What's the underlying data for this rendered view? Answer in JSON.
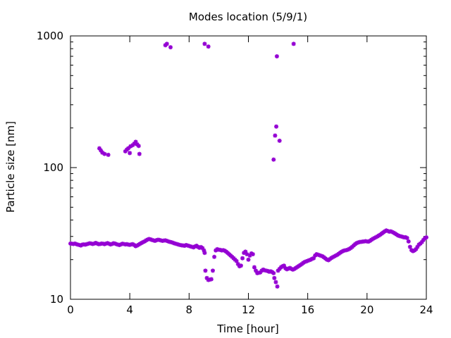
{
  "chart_data": {
    "type": "scatter",
    "title": "Modes location (5/9/1)",
    "xlabel": "Time [hour]",
    "ylabel": "Particle size [nm]",
    "xlim": [
      0,
      24
    ],
    "ylim": [
      10,
      1000
    ],
    "yscale": "log",
    "grid": false,
    "marker_color": "#9400d3",
    "x_ticks": [
      0,
      4,
      8,
      12,
      16,
      20,
      24
    ],
    "x_tick_labels": [
      "0",
      "4",
      "8",
      "12",
      "16",
      "20",
      "24"
    ],
    "y_ticks": [
      10,
      100,
      1000
    ],
    "y_tick_labels": [
      "10",
      "100",
      "1000"
    ],
    "series": [
      {
        "points": [
          [
            0.0,
            26.5
          ],
          [
            0.1,
            26.4
          ],
          [
            0.2,
            26.3
          ],
          [
            0.3,
            26.5
          ],
          [
            0.4,
            26.2
          ],
          [
            0.5,
            26.0
          ],
          [
            0.6,
            25.8
          ],
          [
            0.7,
            25.6
          ],
          [
            0.8,
            26.0
          ],
          [
            0.9,
            26.1
          ],
          [
            1.0,
            26.0
          ],
          [
            1.1,
            26.2
          ],
          [
            1.2,
            26.4
          ],
          [
            1.3,
            26.6
          ],
          [
            1.4,
            26.5
          ],
          [
            1.5,
            26.3
          ],
          [
            1.6,
            26.5
          ],
          [
            1.7,
            26.8
          ],
          [
            1.8,
            26.5
          ],
          [
            1.9,
            26.2
          ],
          [
            2.0,
            26.3
          ],
          [
            2.1,
            26.5
          ],
          [
            2.2,
            26.4
          ],
          [
            2.3,
            26.2
          ],
          [
            2.4,
            26.5
          ],
          [
            2.5,
            26.7
          ],
          [
            2.6,
            26.4
          ],
          [
            2.7,
            26.1
          ],
          [
            2.8,
            26.3
          ],
          [
            2.9,
            26.6
          ],
          [
            3.0,
            26.5
          ],
          [
            3.1,
            26.2
          ],
          [
            3.2,
            26.0
          ],
          [
            3.3,
            25.8
          ],
          [
            3.4,
            26.1
          ],
          [
            3.5,
            26.4
          ],
          [
            3.6,
            26.3
          ],
          [
            3.7,
            26.1
          ],
          [
            3.8,
            26.2
          ],
          [
            3.9,
            26.0
          ],
          [
            4.0,
            25.9
          ],
          [
            4.1,
            26.1
          ],
          [
            4.2,
            26.2
          ],
          [
            4.3,
            25.8
          ],
          [
            4.4,
            25.3
          ],
          [
            4.5,
            25.6
          ],
          [
            4.6,
            26.0
          ],
          [
            4.7,
            26.4
          ],
          [
            4.8,
            26.8
          ],
          [
            4.9,
            27.2
          ],
          [
            5.0,
            27.5
          ],
          [
            5.1,
            28.0
          ],
          [
            5.2,
            28.4
          ],
          [
            5.3,
            28.7
          ],
          [
            5.4,
            28.5
          ],
          [
            5.5,
            28.2
          ],
          [
            5.6,
            28.0
          ],
          [
            5.7,
            27.8
          ],
          [
            5.8,
            28.1
          ],
          [
            5.9,
            28.3
          ],
          [
            6.0,
            28.2
          ],
          [
            6.1,
            28.0
          ],
          [
            6.2,
            27.8
          ],
          [
            6.3,
            27.9
          ],
          [
            6.4,
            28.0
          ],
          [
            6.5,
            27.8
          ],
          [
            6.6,
            27.5
          ],
          [
            6.7,
            27.3
          ],
          [
            6.8,
            27.1
          ],
          [
            6.9,
            26.9
          ],
          [
            7.0,
            26.6
          ],
          [
            7.1,
            26.4
          ],
          [
            7.2,
            26.2
          ],
          [
            7.3,
            26.0
          ],
          [
            7.4,
            25.8
          ],
          [
            7.5,
            25.7
          ],
          [
            7.6,
            25.6
          ],
          [
            7.7,
            25.5
          ],
          [
            7.8,
            25.8
          ],
          [
            7.9,
            25.6
          ],
          [
            8.0,
            25.4
          ],
          [
            8.1,
            25.2
          ],
          [
            8.2,
            25.0
          ],
          [
            8.3,
            24.8
          ],
          [
            8.4,
            25.2
          ],
          [
            8.5,
            25.5
          ],
          [
            8.6,
            25.0
          ],
          [
            8.7,
            24.6
          ],
          [
            8.8,
            24.9
          ],
          [
            8.9,
            24.5
          ],
          [
            9.0,
            23.5
          ],
          [
            9.05,
            22.5
          ],
          [
            9.1,
            16.5
          ],
          [
            9.2,
            14.5
          ],
          [
            9.3,
            14.0
          ],
          [
            9.4,
            14.1
          ],
          [
            9.5,
            14.2
          ],
          [
            9.6,
            16.5
          ],
          [
            9.7,
            21.0
          ],
          [
            9.8,
            23.5
          ],
          [
            9.9,
            24.0
          ],
          [
            10.0,
            23.8
          ],
          [
            10.1,
            23.7
          ],
          [
            10.2,
            23.5
          ],
          [
            10.3,
            23.6
          ],
          [
            10.4,
            23.4
          ],
          [
            10.5,
            23.0
          ],
          [
            10.6,
            22.5
          ],
          [
            10.7,
            22.0
          ],
          [
            10.8,
            21.5
          ],
          [
            10.9,
            21.0
          ],
          [
            11.0,
            20.5
          ],
          [
            11.1,
            20.0
          ],
          [
            11.2,
            19.5
          ],
          [
            11.3,
            18.5
          ],
          [
            11.4,
            17.8
          ],
          [
            11.5,
            18.0
          ],
          [
            11.6,
            20.5
          ],
          [
            11.7,
            22.5
          ],
          [
            11.8,
            23.0
          ],
          [
            11.9,
            22.0
          ],
          [
            12.0,
            20.0
          ],
          [
            12.1,
            21.5
          ],
          [
            12.2,
            22.3
          ],
          [
            12.3,
            22.0
          ],
          [
            12.4,
            17.5
          ],
          [
            12.5,
            16.5
          ],
          [
            12.6,
            15.8
          ],
          [
            12.7,
            15.9
          ],
          [
            12.8,
            16.0
          ],
          [
            12.9,
            16.5
          ],
          [
            13.0,
            16.8
          ],
          [
            13.1,
            16.6
          ],
          [
            13.2,
            16.5
          ],
          [
            13.3,
            16.4
          ],
          [
            13.4,
            16.2
          ],
          [
            13.5,
            16.3
          ],
          [
            13.6,
            16.1
          ],
          [
            13.7,
            15.8
          ],
          [
            13.75,
            14.5
          ],
          [
            13.85,
            13.5
          ],
          [
            13.95,
            12.5
          ],
          [
            14.0,
            16.5
          ],
          [
            14.1,
            17.0
          ],
          [
            14.2,
            17.5
          ],
          [
            14.3,
            17.8
          ],
          [
            14.4,
            18.0
          ],
          [
            14.5,
            17.2
          ],
          [
            14.6,
            16.9
          ],
          [
            14.7,
            17.1
          ],
          [
            14.8,
            17.3
          ],
          [
            14.9,
            17.0
          ],
          [
            15.0,
            16.8
          ],
          [
            15.1,
            17.0
          ],
          [
            15.2,
            17.3
          ],
          [
            15.3,
            17.6
          ],
          [
            15.4,
            17.9
          ],
          [
            15.5,
            18.2
          ],
          [
            15.6,
            18.5
          ],
          [
            15.7,
            18.9
          ],
          [
            15.8,
            19.2
          ],
          [
            15.9,
            19.4
          ],
          [
            16.0,
            19.6
          ],
          [
            16.1,
            19.8
          ],
          [
            16.2,
            20.0
          ],
          [
            16.3,
            20.3
          ],
          [
            16.4,
            20.5
          ],
          [
            16.5,
            21.5
          ],
          [
            16.6,
            22.0
          ],
          [
            16.7,
            21.8
          ],
          [
            16.8,
            21.6
          ],
          [
            16.9,
            21.4
          ],
          [
            17.0,
            21.2
          ],
          [
            17.1,
            20.8
          ],
          [
            17.2,
            20.4
          ],
          [
            17.3,
            20.0
          ],
          [
            17.4,
            19.8
          ],
          [
            17.5,
            20.2
          ],
          [
            17.6,
            20.6
          ],
          [
            17.7,
            20.9
          ],
          [
            17.8,
            21.2
          ],
          [
            17.9,
            21.5
          ],
          [
            18.0,
            21.8
          ],
          [
            18.1,
            22.2
          ],
          [
            18.2,
            22.6
          ],
          [
            18.3,
            23.0
          ],
          [
            18.4,
            23.3
          ],
          [
            18.5,
            23.5
          ],
          [
            18.6,
            23.6
          ],
          [
            18.7,
            23.8
          ],
          [
            18.8,
            24.1
          ],
          [
            18.9,
            24.5
          ],
          [
            19.0,
            25.0
          ],
          [
            19.1,
            25.6
          ],
          [
            19.2,
            26.2
          ],
          [
            19.3,
            26.7
          ],
          [
            19.4,
            27.0
          ],
          [
            19.5,
            27.2
          ],
          [
            19.6,
            27.3
          ],
          [
            19.7,
            27.4
          ],
          [
            19.8,
            27.5
          ],
          [
            19.9,
            27.6
          ],
          [
            20.0,
            27.5
          ],
          [
            20.1,
            27.4
          ],
          [
            20.2,
            27.8
          ],
          [
            20.3,
            28.3
          ],
          [
            20.4,
            28.8
          ],
          [
            20.5,
            29.2
          ],
          [
            20.6,
            29.6
          ],
          [
            20.7,
            30.0
          ],
          [
            20.8,
            30.5
          ],
          [
            20.9,
            31.0
          ],
          [
            21.0,
            31.6
          ],
          [
            21.1,
            32.2
          ],
          [
            21.2,
            32.8
          ],
          [
            21.3,
            33.3
          ],
          [
            21.4,
            33.0
          ],
          [
            21.5,
            32.6
          ],
          [
            21.6,
            32.8
          ],
          [
            21.7,
            32.4
          ],
          [
            21.8,
            32.0
          ],
          [
            21.9,
            31.5
          ],
          [
            22.0,
            31.0
          ],
          [
            22.1,
            30.5
          ],
          [
            22.2,
            30.2
          ],
          [
            22.3,
            30.0
          ],
          [
            22.4,
            29.8
          ],
          [
            22.5,
            29.5
          ],
          [
            22.6,
            29.6
          ],
          [
            22.7,
            29.2
          ],
          [
            22.8,
            27.5
          ],
          [
            22.9,
            25.0
          ],
          [
            23.0,
            23.6
          ],
          [
            23.1,
            23.2
          ],
          [
            23.2,
            23.5
          ],
          [
            23.3,
            24.0
          ],
          [
            23.4,
            25.0
          ],
          [
            23.5,
            26.0
          ],
          [
            23.6,
            26.5
          ],
          [
            23.7,
            27.2
          ],
          [
            23.8,
            28.2
          ],
          [
            23.9,
            29.0
          ],
          [
            24.0,
            29.5
          ],
          [
            1.95,
            140
          ],
          [
            2.05,
            135
          ],
          [
            2.15,
            130
          ],
          [
            2.3,
            127
          ],
          [
            2.55,
            125
          ],
          [
            3.7,
            133
          ],
          [
            3.8,
            137
          ],
          [
            3.9,
            140
          ],
          [
            4.0,
            129
          ],
          [
            4.05,
            145
          ],
          [
            4.2,
            148
          ],
          [
            4.3,
            152
          ],
          [
            4.4,
            157
          ],
          [
            4.5,
            150
          ],
          [
            4.6,
            146
          ],
          [
            4.65,
            127
          ],
          [
            6.4,
            850
          ],
          [
            6.5,
            870
          ],
          [
            6.75,
            820
          ],
          [
            9.05,
            870
          ],
          [
            9.3,
            830
          ],
          [
            13.7,
            115
          ],
          [
            13.8,
            175
          ],
          [
            13.88,
            205
          ],
          [
            13.92,
            700
          ],
          [
            14.1,
            160
          ],
          [
            15.05,
            870
          ]
        ]
      }
    ]
  }
}
